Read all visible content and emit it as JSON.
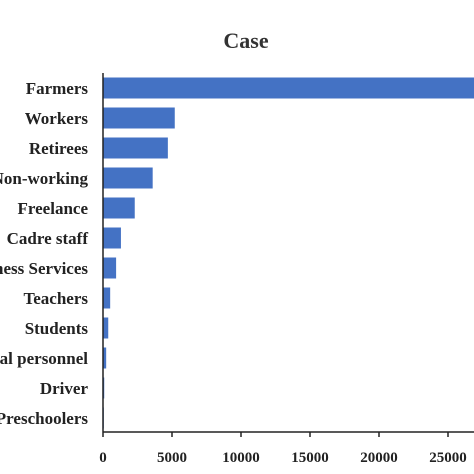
{
  "chart_data": {
    "type": "bar",
    "orientation": "horizontal",
    "title": "Case",
    "xlabel": "",
    "ylabel": "",
    "categories": [
      "Farmers",
      "Workers",
      "Retirees",
      "Non-working",
      "Freelance",
      "Cadre staff",
      "Business Services",
      "Teachers",
      "Students",
      "Medical personnel",
      "Driver",
      "Preschoolers"
    ],
    "values": [
      27500,
      5200,
      4700,
      3600,
      2300,
      1300,
      950,
      520,
      380,
      230,
      90,
      30
    ],
    "xlim": [
      0,
      27500
    ],
    "xticks": [
      0,
      5000,
      10000,
      15000,
      20000,
      25000
    ],
    "xtick_labels": [
      "0",
      "5000",
      "10000",
      "15000",
      "20000",
      "25000"
    ],
    "grid": false,
    "bar_color": "#4472C4"
  }
}
